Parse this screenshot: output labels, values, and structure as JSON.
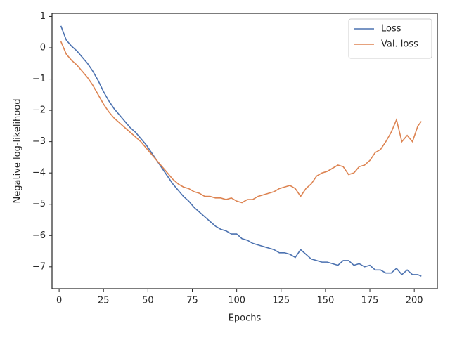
{
  "chart_data": {
    "type": "line",
    "xlabel": "Epochs",
    "ylabel": "Negative log-likelihood",
    "x": [
      1,
      4,
      7,
      10,
      13,
      16,
      19,
      22,
      25,
      28,
      31,
      34,
      37,
      40,
      43,
      46,
      49,
      52,
      55,
      58,
      61,
      64,
      67,
      70,
      73,
      76,
      79,
      82,
      85,
      88,
      91,
      94,
      97,
      100,
      103,
      106,
      109,
      112,
      115,
      118,
      121,
      124,
      127,
      130,
      133,
      136,
      139,
      142,
      145,
      148,
      151,
      154,
      157,
      160,
      163,
      166,
      169,
      172,
      175,
      178,
      181,
      184,
      187,
      190,
      193,
      196,
      199,
      202,
      204
    ],
    "series": [
      {
        "name": "Loss",
        "color": "#4c72b0",
        "values": [
          0.7,
          0.25,
          0.05,
          -0.1,
          -0.3,
          -0.5,
          -0.75,
          -1.05,
          -1.4,
          -1.7,
          -1.95,
          -2.15,
          -2.35,
          -2.55,
          -2.7,
          -2.9,
          -3.1,
          -3.35,
          -3.6,
          -3.85,
          -4.1,
          -4.35,
          -4.55,
          -4.75,
          -4.9,
          -5.1,
          -5.25,
          -5.4,
          -5.55,
          -5.7,
          -5.8,
          -5.85,
          -5.95,
          -5.95,
          -6.1,
          -6.15,
          -6.25,
          -6.3,
          -6.35,
          -6.4,
          -6.45,
          -6.55,
          -6.55,
          -6.6,
          -6.7,
          -6.45,
          -6.6,
          -6.75,
          -6.8,
          -6.85,
          -6.85,
          -6.9,
          -6.95,
          -6.8,
          -6.8,
          -6.95,
          -6.9,
          -7.0,
          -6.95,
          -7.1,
          -7.1,
          -7.2,
          -7.2,
          -7.05,
          -7.25,
          -7.1,
          -7.25,
          -7.25,
          -7.3
        ]
      },
      {
        "name": "Val. loss",
        "color": "#dd8452",
        "values": [
          0.2,
          -0.2,
          -0.4,
          -0.55,
          -0.75,
          -0.95,
          -1.2,
          -1.5,
          -1.8,
          -2.05,
          -2.25,
          -2.4,
          -2.55,
          -2.7,
          -2.85,
          -3.0,
          -3.2,
          -3.4,
          -3.6,
          -3.8,
          -4.0,
          -4.2,
          -4.35,
          -4.45,
          -4.5,
          -4.6,
          -4.65,
          -4.75,
          -4.75,
          -4.8,
          -4.8,
          -4.85,
          -4.8,
          -4.9,
          -4.95,
          -4.85,
          -4.85,
          -4.75,
          -4.7,
          -4.65,
          -4.6,
          -4.5,
          -4.45,
          -4.4,
          -4.5,
          -4.75,
          -4.5,
          -4.35,
          -4.1,
          -4.0,
          -3.95,
          -3.85,
          -3.75,
          -3.8,
          -4.05,
          -4.0,
          -3.8,
          -3.75,
          -3.6,
          -3.35,
          -3.25,
          -3.0,
          -2.7,
          -2.3,
          -3.0,
          -2.8,
          -3.0,
          -2.5,
          -2.35
        ]
      }
    ],
    "xlim": [
      -4,
      213
    ],
    "xticks": [
      0,
      25,
      50,
      75,
      100,
      125,
      150,
      175,
      200
    ],
    "ylim": [
      -7.7,
      1.1
    ],
    "yticks": [
      {
        "value": -7,
        "label": "−7"
      },
      {
        "value": -6,
        "label": "−6"
      },
      {
        "value": -5,
        "label": "−5"
      },
      {
        "value": -4,
        "label": "−4"
      },
      {
        "value": -3,
        "label": "−3"
      },
      {
        "value": -2,
        "label": "−2"
      },
      {
        "value": -1,
        "label": "−1"
      },
      0,
      1
    ],
    "legend": "upper right"
  }
}
